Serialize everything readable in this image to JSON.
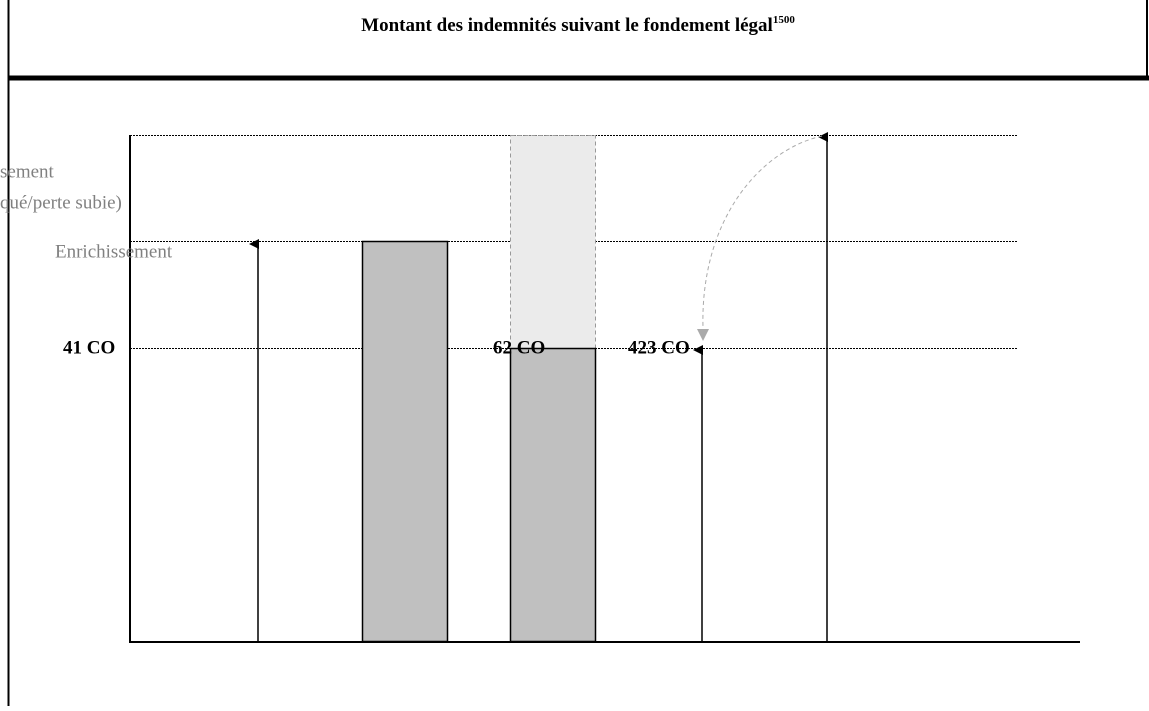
{
  "header": {
    "title": "Montant des indemnités suivant le fondement légal",
    "footnote": "1500"
  },
  "labels": {
    "clipped_line_1": "sement",
    "clipped_line_2": "qué/perte subie)",
    "enrichment": "Enrichissement",
    "article_41": "41 CO",
    "article_62": "62 CO",
    "article_423": "423 CO"
  }
}
